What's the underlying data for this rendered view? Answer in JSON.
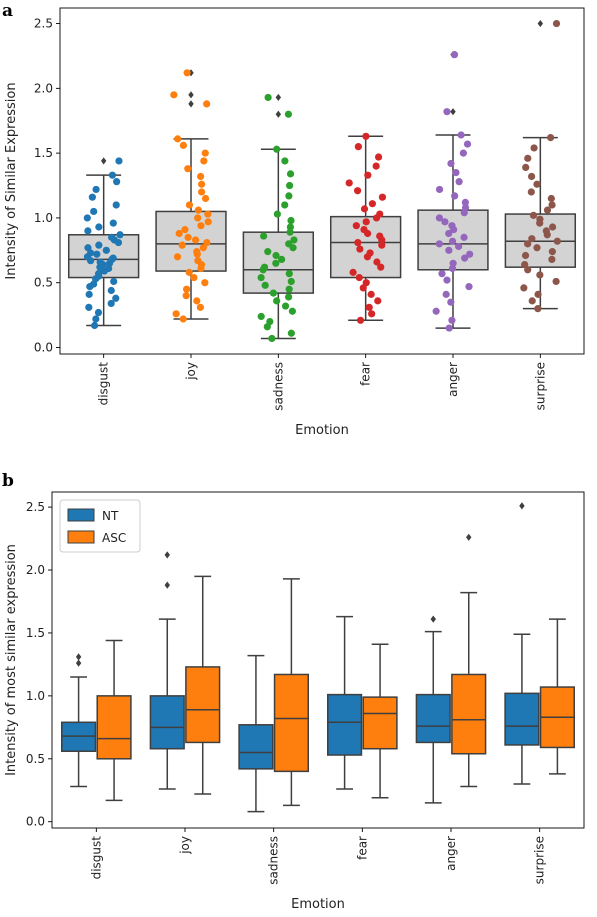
{
  "figure": {
    "panel_a_letter": "a",
    "panel_b_letter": "b"
  },
  "chart_data": [
    {
      "type": "box",
      "xlabel": "Emotion",
      "ylabel": "Intensity of Similar Expression",
      "ylim": [
        -0.05,
        2.62
      ],
      "yticks": [
        0.0,
        0.5,
        1.0,
        1.5,
        2.0,
        2.5
      ],
      "ytick_labels": [
        "0.0",
        "0.5",
        "1.0",
        "1.5",
        "2.0",
        "2.5"
      ],
      "categories": [
        "disgust",
        "joy",
        "sadness",
        "fear",
        "anger",
        "surprise"
      ],
      "box_color": "#d3d3d3",
      "point_colors": [
        "#1f77b4",
        "#ff7f0e",
        "#2ca02c",
        "#d62728",
        "#9467bd",
        "#8c564b"
      ],
      "boxes": [
        {
          "whislo": 0.17,
          "q1": 0.54,
          "med": 0.68,
          "q3": 0.87,
          "whishi": 1.33,
          "fliers": [
            1.44
          ]
        },
        {
          "whislo": 0.22,
          "q1": 0.59,
          "med": 0.8,
          "q3": 1.05,
          "whishi": 1.61,
          "fliers": [
            1.88,
            1.95,
            2.12
          ]
        },
        {
          "whislo": 0.07,
          "q1": 0.42,
          "med": 0.6,
          "q3": 0.89,
          "whishi": 1.53,
          "fliers": [
            1.8,
            1.93
          ]
        },
        {
          "whislo": 0.21,
          "q1": 0.54,
          "med": 0.81,
          "q3": 1.01,
          "whishi": 1.63,
          "fliers": []
        },
        {
          "whislo": 0.15,
          "q1": 0.6,
          "med": 0.8,
          "q3": 1.06,
          "whishi": 1.64,
          "fliers": [
            1.82,
            2.26
          ]
        },
        {
          "whislo": 0.3,
          "q1": 0.62,
          "med": 0.82,
          "q3": 1.03,
          "whishi": 1.62,
          "fliers": [
            2.5
          ]
        }
      ],
      "strip_points": [
        [
          0.17,
          0.22,
          0.27,
          0.31,
          0.34,
          0.38,
          0.41,
          0.44,
          0.47,
          0.49,
          0.51,
          0.53,
          0.55,
          0.57,
          0.59,
          0.61,
          0.62,
          0.64,
          0.65,
          0.66,
          0.67,
          0.68,
          0.69,
          0.7,
          0.72,
          0.73,
          0.75,
          0.77,
          0.79,
          0.81,
          0.83,
          0.85,
          0.87,
          0.9,
          0.93,
          0.96,
          1.0,
          1.05,
          1.1,
          1.16,
          1.22,
          1.28,
          1.33,
          1.44
        ],
        [
          0.22,
          0.26,
          0.31,
          0.36,
          0.4,
          0.45,
          0.5,
          0.54,
          0.58,
          0.61,
          0.64,
          0.67,
          0.7,
          0.72,
          0.74,
          0.77,
          0.79,
          0.81,
          0.83,
          0.85,
          0.88,
          0.91,
          0.94,
          0.97,
          1.0,
          1.03,
          1.06,
          1.1,
          1.15,
          1.2,
          1.26,
          1.32,
          1.38,
          1.44,
          1.5,
          1.56,
          1.61,
          1.88,
          1.95,
          2.12
        ],
        [
          0.07,
          0.11,
          0.16,
          0.2,
          0.24,
          0.28,
          0.32,
          0.36,
          0.39,
          0.42,
          0.45,
          0.48,
          0.51,
          0.54,
          0.57,
          0.6,
          0.62,
          0.65,
          0.68,
          0.71,
          0.74,
          0.77,
          0.8,
          0.83,
          0.86,
          0.89,
          0.93,
          0.98,
          1.03,
          1.1,
          1.17,
          1.25,
          1.34,
          1.44,
          1.53,
          1.8,
          1.93
        ],
        [
          0.21,
          0.26,
          0.31,
          0.36,
          0.41,
          0.46,
          0.5,
          0.54,
          0.58,
          0.62,
          0.66,
          0.7,
          0.73,
          0.76,
          0.79,
          0.81,
          0.83,
          0.86,
          0.88,
          0.91,
          0.94,
          0.97,
          1.0,
          1.03,
          1.07,
          1.11,
          1.16,
          1.21,
          1.27,
          1.33,
          1.4,
          1.47,
          1.55,
          1.63
        ],
        [
          0.15,
          0.21,
          0.28,
          0.35,
          0.41,
          0.47,
          0.52,
          0.57,
          0.61,
          0.65,
          0.69,
          0.72,
          0.75,
          0.78,
          0.8,
          0.82,
          0.85,
          0.88,
          0.91,
          0.94,
          0.97,
          1.0,
          1.04,
          1.08,
          1.12,
          1.17,
          1.22,
          1.28,
          1.35,
          1.42,
          1.5,
          1.57,
          1.64,
          1.82,
          2.26
        ],
        [
          0.3,
          0.36,
          0.41,
          0.46,
          0.51,
          0.56,
          0.6,
          0.64,
          0.68,
          0.71,
          0.74,
          0.77,
          0.8,
          0.82,
          0.84,
          0.87,
          0.9,
          0.93,
          0.96,
          0.99,
          1.02,
          1.06,
          1.1,
          1.15,
          1.2,
          1.26,
          1.32,
          1.39,
          1.46,
          1.54,
          1.62,
          2.5
        ]
      ]
    },
    {
      "type": "box",
      "xlabel": "Emotion",
      "ylabel": "Intensity of most similar expression",
      "ylim": [
        -0.05,
        2.62
      ],
      "yticks": [
        0.0,
        0.5,
        1.0,
        1.5,
        2.0,
        2.5
      ],
      "ytick_labels": [
        "0.0",
        "0.5",
        "1.0",
        "1.5",
        "2.0",
        "2.5"
      ],
      "categories": [
        "disgust",
        "joy",
        "sadness",
        "fear",
        "anger",
        "surprise"
      ],
      "legend": {
        "position": "top-left"
      },
      "series": [
        {
          "name": "NT",
          "color": "#1f77b4",
          "boxes": [
            {
              "whislo": 0.28,
              "q1": 0.56,
              "med": 0.68,
              "q3": 0.79,
              "whishi": 1.15,
              "fliers": [
                1.26,
                1.31
              ]
            },
            {
              "whislo": 0.26,
              "q1": 0.58,
              "med": 0.75,
              "q3": 1.0,
              "whishi": 1.61,
              "fliers": [
                1.88,
                2.12
              ]
            },
            {
              "whislo": 0.08,
              "q1": 0.42,
              "med": 0.55,
              "q3": 0.77,
              "whishi": 1.32,
              "fliers": []
            },
            {
              "whislo": 0.26,
              "q1": 0.53,
              "med": 0.79,
              "q3": 1.01,
              "whishi": 1.63,
              "fliers": []
            },
            {
              "whislo": 0.15,
              "q1": 0.63,
              "med": 0.76,
              "q3": 1.01,
              "whishi": 1.51,
              "fliers": [
                1.61
              ]
            },
            {
              "whislo": 0.3,
              "q1": 0.61,
              "med": 0.76,
              "q3": 1.02,
              "whishi": 1.49,
              "fliers": [
                2.51
              ]
            }
          ]
        },
        {
          "name": "ASC",
          "color": "#ff7f0e",
          "boxes": [
            {
              "whislo": 0.17,
              "q1": 0.5,
              "med": 0.66,
              "q3": 1.0,
              "whishi": 1.44,
              "fliers": []
            },
            {
              "whislo": 0.22,
              "q1": 0.63,
              "med": 0.89,
              "q3": 1.23,
              "whishi": 1.95,
              "fliers": []
            },
            {
              "whislo": 0.13,
              "q1": 0.4,
              "med": 0.82,
              "q3": 1.17,
              "whishi": 1.93,
              "fliers": []
            },
            {
              "whislo": 0.19,
              "q1": 0.58,
              "med": 0.86,
              "q3": 0.99,
              "whishi": 1.41,
              "fliers": []
            },
            {
              "whislo": 0.28,
              "q1": 0.54,
              "med": 0.81,
              "q3": 1.17,
              "whishi": 1.82,
              "fliers": [
                2.26
              ]
            },
            {
              "whislo": 0.38,
              "q1": 0.59,
              "med": 0.83,
              "q3": 1.07,
              "whishi": 1.61,
              "fliers": []
            }
          ]
        }
      ]
    }
  ]
}
